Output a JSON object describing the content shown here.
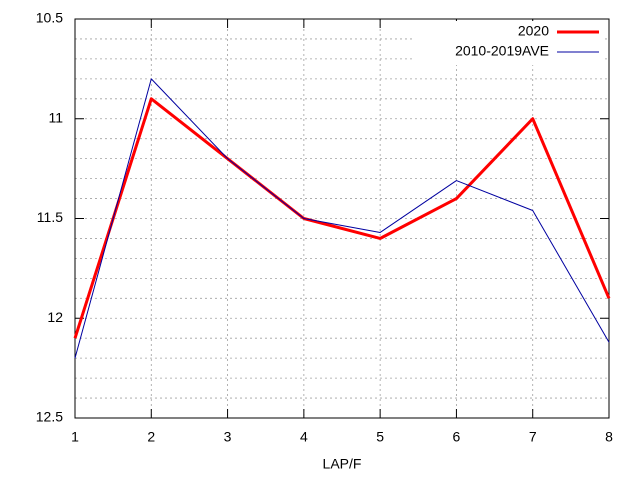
{
  "chart_data": {
    "type": "line",
    "x_label": "LAP/F",
    "x": [
      1,
      2,
      3,
      4,
      5,
      6,
      7,
      8
    ],
    "series": [
      {
        "name": "2020",
        "color": "#ff0000",
        "width": 3,
        "values": [
          12.1,
          10.9,
          11.2,
          11.5,
          11.6,
          11.4,
          11.0,
          11.9
        ]
      },
      {
        "name": "2010-2019AVE",
        "color": "#0000a0",
        "width": 1,
        "values": [
          12.2,
          10.8,
          11.2,
          11.5,
          11.57,
          11.31,
          11.46,
          12.12
        ]
      }
    ],
    "xlim": [
      1,
      8
    ],
    "xticks": [
      1,
      2,
      3,
      4,
      5,
      6,
      7,
      8
    ],
    "ylim": [
      10.5,
      12.5
    ],
    "yticks": [
      10.5,
      11,
      11.5,
      12,
      12.5
    ],
    "y_reversed": true,
    "y_minor_ticks": [
      10.6,
      10.7,
      10.8,
      10.9,
      11.1,
      11.2,
      11.3,
      11.4,
      11.6,
      11.7,
      11.8,
      11.9,
      12.1,
      12.2,
      12.3,
      12.4
    ],
    "grid": true,
    "legend": "top-right"
  }
}
